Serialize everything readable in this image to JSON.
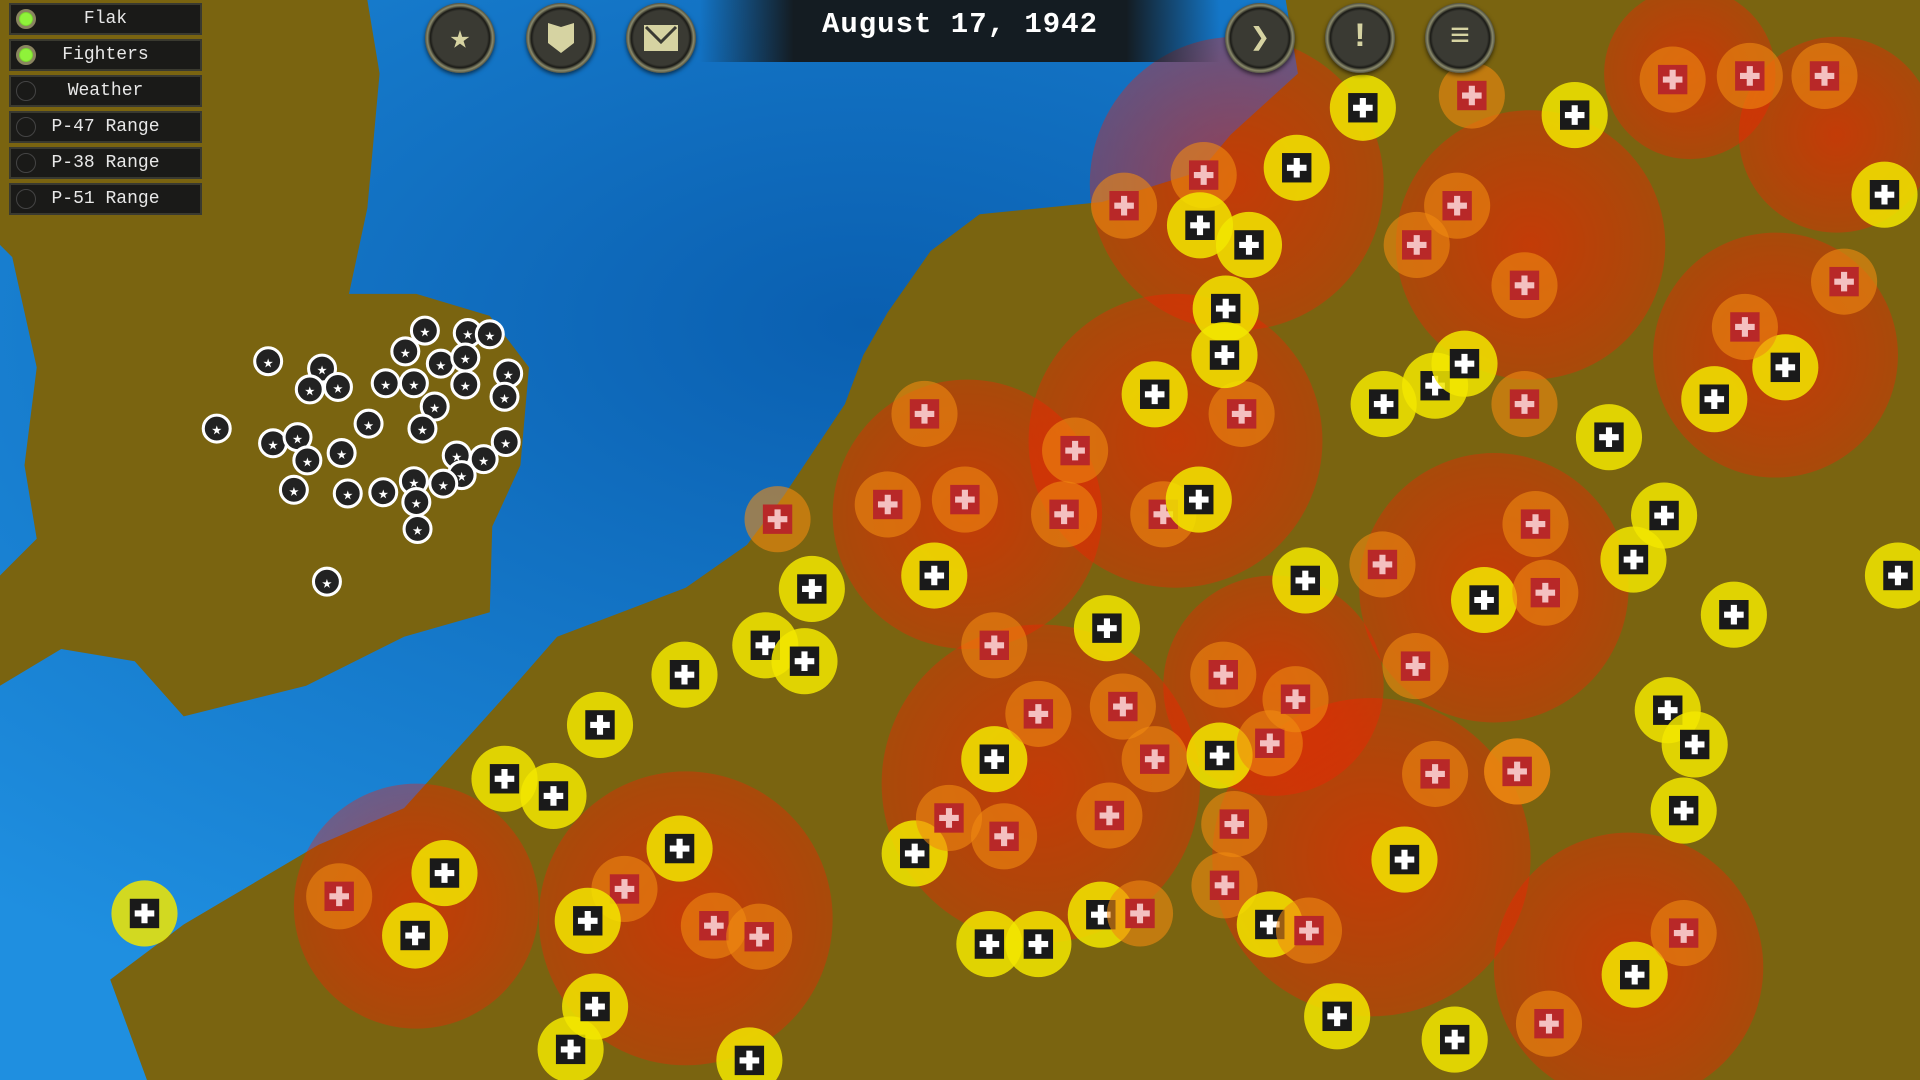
{
  "layers_panel": {
    "items": [
      {
        "label": "Flak",
        "enabled": true
      },
      {
        "label": "Fighters",
        "enabled": true
      },
      {
        "label": "Weather",
        "enabled": false
      },
      {
        "label": "P-47 Range",
        "enabled": false
      },
      {
        "label": "P-38 Range",
        "enabled": false
      },
      {
        "label": "P-51 Range",
        "enabled": false
      }
    ]
  },
  "header": {
    "date": "August 17, 1942"
  },
  "buttons": {
    "left": [
      {
        "icon": "star-icon"
      },
      {
        "icon": "shield-icon"
      },
      {
        "icon": "envelope-icon"
      }
    ],
    "right": [
      {
        "icon": "next-turn-arrow-icon"
      },
      {
        "icon": "alert-icon"
      },
      {
        "icon": "menu-icon"
      }
    ]
  },
  "colors": {
    "sea": "#1a82d8",
    "land": "#7a6410",
    "flak": "#e01010",
    "fighters": "#f0e800",
    "allied_marker": "#ffffff",
    "enemy_marker": "#b02020"
  }
}
